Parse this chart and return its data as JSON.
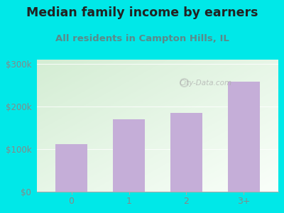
{
  "categories": [
    "0",
    "1",
    "2",
    "3+"
  ],
  "values": [
    112000,
    170000,
    185000,
    258000
  ],
  "bar_color": "#c5aed8",
  "title": "Median family income by earners",
  "subtitle": "All residents in Campton Hills, IL",
  "ylim": [
    0,
    310000
  ],
  "yticks": [
    0,
    100000,
    200000,
    300000
  ],
  "ytick_labels": [
    "$0",
    "$100k",
    "$200k",
    "$300k"
  ],
  "outer_bg": "#00e8e8",
  "plot_bg_color": "#f0f9f0",
  "title_color": "#222222",
  "subtitle_color": "#5a8a8a",
  "tick_color": "#888888",
  "watermark": "City-Data.com",
  "title_fontsize": 12.5,
  "subtitle_fontsize": 9.5,
  "gradient_top_left": "#d4ecd4",
  "gradient_bottom_right": "#fafffe"
}
